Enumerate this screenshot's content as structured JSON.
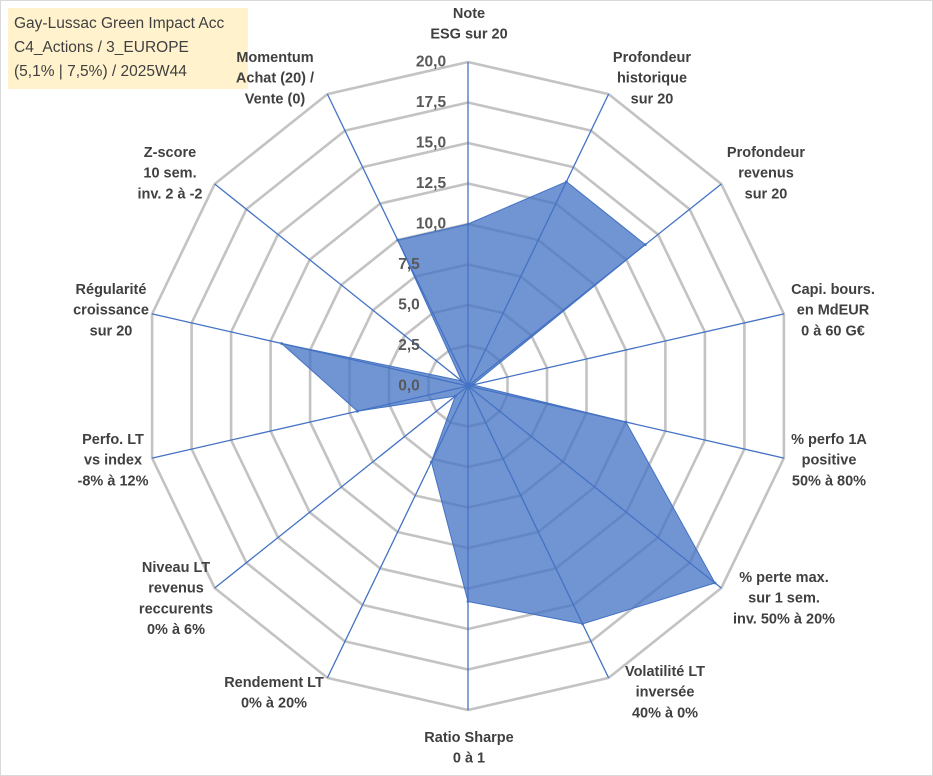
{
  "chart_data": {
    "type": "area",
    "subtype": "filled radar",
    "title": [
      "Gay-Lussac Green Impact Acc",
      "C4_Actions / 3_EUROPE",
      "(5,1% | 7,5%) / 2025W44"
    ],
    "categories": [
      [
        "Note",
        "ESG sur 20"
      ],
      [
        "Profondeur",
        "historique",
        "sur 20"
      ],
      [
        "Profondeur",
        "revenus",
        "sur 20"
      ],
      [
        "Capi. bours.",
        "en MdEUR",
        "0 à 60 G€"
      ],
      [
        "% perfo 1A",
        "positive",
        "50% à 80%"
      ],
      [
        "% perte max.",
        "sur 1 sem.",
        "inv. 50% à 20%"
      ],
      [
        "Volatilité LT",
        "inversée",
        "40% à 0%"
      ],
      [
        "Ratio Sharpe",
        "0 à 1"
      ],
      [
        "Rendement LT",
        "0% à 20%"
      ],
      [
        "Niveau LT",
        "revenus",
        "reccurents",
        "0% à 6%"
      ],
      [
        "Perfo. LT",
        "vs index",
        "-8% à 12%"
      ],
      [
        "Régularité",
        "croissance",
        "sur 20"
      ],
      [
        "Z-score",
        "10 sem.",
        "inv. 2 à -2"
      ],
      [
        "Momentum",
        "Achat (20) /",
        "Vente (0)"
      ]
    ],
    "values": [
      10,
      14,
      14,
      0.3,
      10,
      19.5,
      16.3,
      13.3,
      5.2,
      1,
      7,
      11.8,
      0.5,
      10
    ],
    "rlim": [
      0,
      20
    ],
    "ticks": [
      "0,0",
      "2,5",
      "5,0",
      "7,5",
      "10,0",
      "12,5",
      "15,0",
      "17,5",
      "20,0"
    ],
    "grid": true,
    "legend": false,
    "colors": {
      "series_fill": "#4472C4",
      "series_line": "#4472C4",
      "axis_spokes": "#4472C4",
      "grid_rings": "#C3C3C3",
      "title_box_background": "#FFF2CC"
    }
  }
}
